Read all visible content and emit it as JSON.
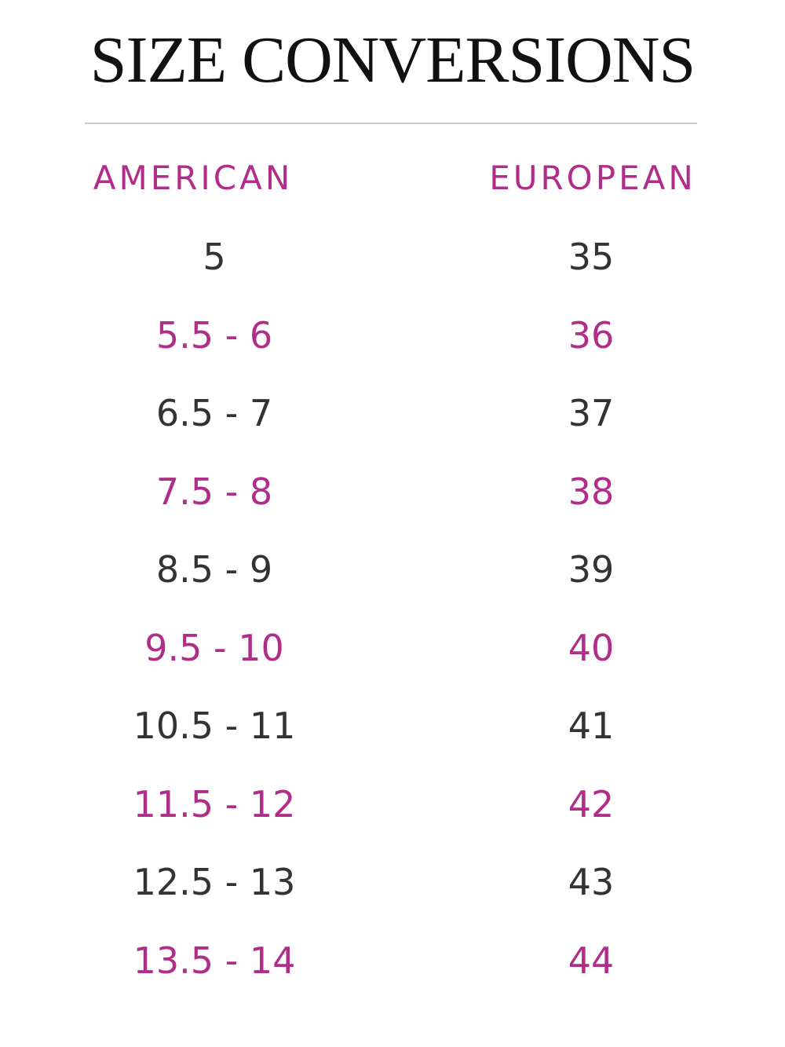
{
  "header": {
    "title": "SIZE CONVERSIONS"
  },
  "table": {
    "columns": [
      "AMERICAN",
      "EUROPEAN"
    ],
    "rows": [
      [
        "5",
        "35"
      ],
      [
        "5.5 - 6",
        "36"
      ],
      [
        "6.5 - 7",
        "37"
      ],
      [
        "7.5 - 8",
        "38"
      ],
      [
        "8.5 - 9",
        "39"
      ],
      [
        "9.5 - 10",
        "40"
      ],
      [
        "10.5 - 11",
        "41"
      ],
      [
        "11.5 - 12",
        "42"
      ],
      [
        "12.5 - 13",
        "43"
      ],
      [
        "13.5 - 14",
        "44"
      ]
    ]
  }
}
